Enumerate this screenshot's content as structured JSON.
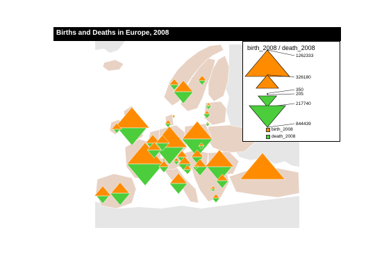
{
  "map": {
    "title": "Births and Deaths in Europe, 2008",
    "colors": {
      "sea": "#ffffff",
      "background_land": "#e6e6e6",
      "country_fill": "#e8d2c4",
      "country_border": "#ffffff",
      "birth": "#ff8c00",
      "death": "#4ccd3c"
    }
  },
  "legend": {
    "title": "birth_2008 / death_2008",
    "sizes": [
      {
        "label": "1262333",
        "value": 1262333,
        "kind": "birth"
      },
      {
        "label": "326180",
        "value": 326180,
        "kind": "birth"
      },
      {
        "label": "350",
        "value": 350,
        "kind": "birth"
      },
      {
        "label": "205",
        "value": 205,
        "kind": "death"
      },
      {
        "label": "217740",
        "value": 217740,
        "kind": "death"
      },
      {
        "label": "844439",
        "value": 844439,
        "kind": "death"
      }
    ],
    "keys": [
      {
        "label": "birth_2008",
        "color": "#ff8c00"
      },
      {
        "label": "death_2008",
        "color": "#4ccd3c"
      }
    ]
  },
  "chart_data": {
    "type": "proportional-symbol-map",
    "title": "Births and Deaths in Europe, 2008",
    "series": [
      {
        "name": "birth_2008",
        "symbol": "upward-triangle",
        "color": "#ff8c00"
      },
      {
        "name": "death_2008",
        "symbol": "downward-triangle",
        "color": "#4ccd3c"
      }
    ],
    "symbols": [
      {
        "birth": 770000,
        "death": 550000
      },
      {
        "birth": 830000,
        "death": 840000
      },
      {
        "birth": 800000,
        "death": 530000
      },
      {
        "birth": 570000,
        "death": 590000
      },
      {
        "birth": 520000,
        "death": 390000
      },
      {
        "birth": 1262333,
        "death": 0
      },
      {
        "birth": 210000,
        "death": 260000
      },
      {
        "birth": 180000,
        "death": 100000
      },
      {
        "birth": 190000,
        "death": 200000
      },
      {
        "birth": 130000,
        "death": 95000
      },
      {
        "birth": 120000,
        "death": 115000
      },
      {
        "birth": 75000,
        "death": 55000
      },
      {
        "birth": 65000,
        "death": 60000
      },
      {
        "birth": 95000,
        "death": 80000
      },
      {
        "birth": 25000,
        "death": 25000
      },
      {
        "birth": 100000,
        "death": 110000
      },
      {
        "birth": 110000,
        "death": 140000
      },
      {
        "birth": 230000,
        "death": 250000
      },
      {
        "birth": 80000,
        "death": 100000
      },
      {
        "birth": 30000,
        "death": 38000
      },
      {
        "birth": 45000,
        "death": 35000
      },
      {
        "birth": 60000,
        "death": 50000
      },
      {
        "birth": 66000,
        "death": 28000
      },
      {
        "birth": 20000,
        "death": 35000
      },
      {
        "birth": 16000,
        "death": 26000
      },
      {
        "birth": 6500,
        "death": 13000
      },
      {
        "birth": 16000,
        "death": 12000
      },
      {
        "birth": 10000,
        "death": 9000
      },
      {
        "birth": 5500,
        "death": 3500
      },
      {
        "birth": 4500,
        "death": 4000
      },
      {
        "birth": 40000,
        "death": 40000
      },
      {
        "birth": 22000,
        "death": 21000
      },
      {
        "birth": 118000,
        "death": 105000
      },
      {
        "birth": 20000,
        "death": 18000
      },
      {
        "birth": 8000,
        "death": 3500
      },
      {
        "birth": 5500,
        "death": 5000
      },
      {
        "birth": 350,
        "death": 205
      }
    ]
  }
}
